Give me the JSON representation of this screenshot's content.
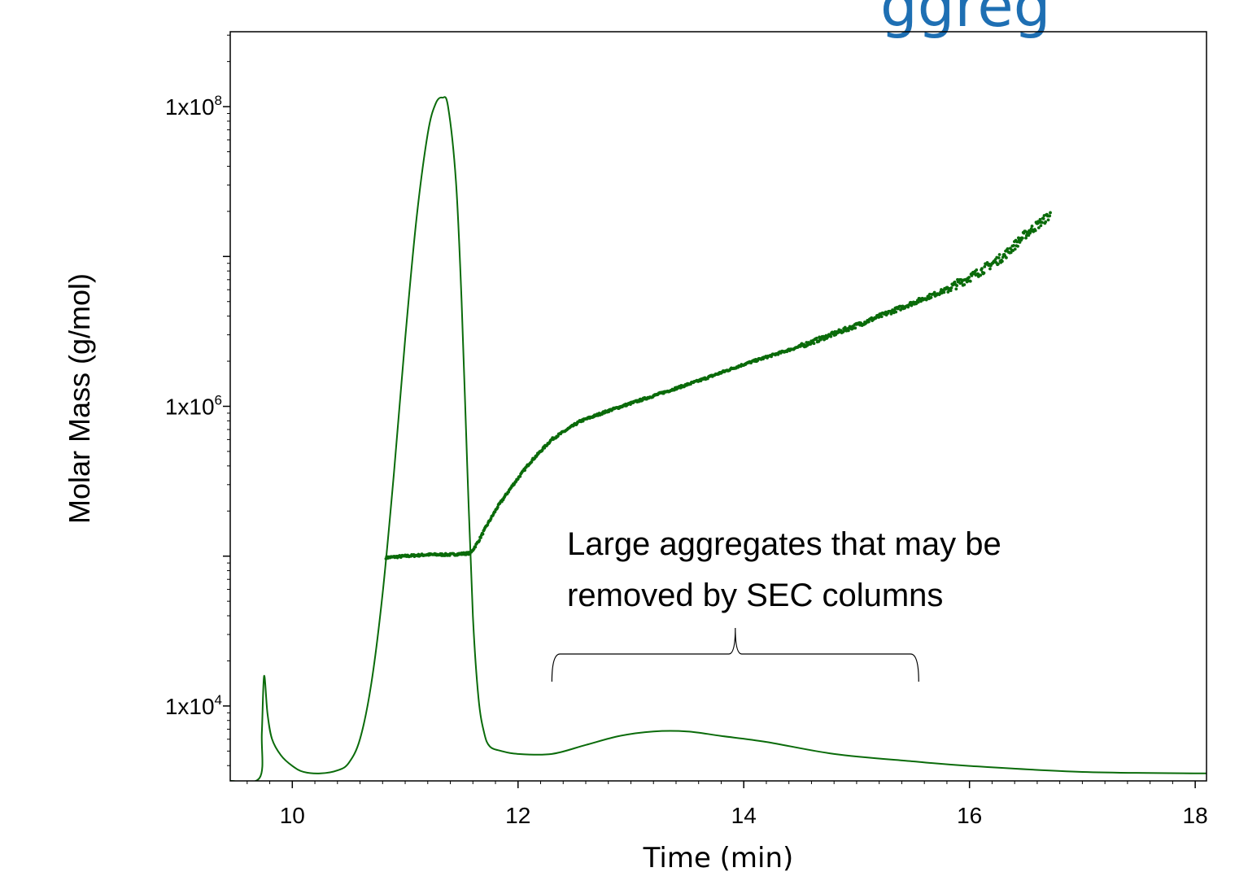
{
  "title_fragment": "ggreg",
  "colors": {
    "series": "#0a6b0a",
    "title": "#1e6fb3",
    "frame": "#000000"
  },
  "chart_data": {
    "type": "line",
    "title": "",
    "xlabel": "Time (min)",
    "ylabel": "Molar Mass (g/mol)",
    "xlim": [
      9.45,
      18.1
    ],
    "ylim_log10": [
      3.5,
      8.5
    ],
    "yscale": "log",
    "x_ticks": [
      10,
      12,
      14,
      16,
      18
    ],
    "x_tick_labels": [
      "10",
      "12",
      "14",
      "16",
      "18"
    ],
    "y_ticks": [
      {
        "base": "1x10",
        "exp": "8",
        "value_log10": 8
      },
      {
        "base": "1x10",
        "exp": "6",
        "value_log10": 6
      },
      {
        "base": "1x10",
        "exp": "4",
        "value_log10": 4
      }
    ],
    "grid": false,
    "annotation": {
      "lines": [
        "Large aggregates that may be",
        "removed by SEC columns"
      ],
      "bracket_x": [
        12.3,
        15.55
      ]
    },
    "series": [
      {
        "kind": "detector-trace",
        "x": [
          9.45,
          9.71,
          9.73,
          9.75,
          9.78,
          9.82,
          9.9,
          10.0,
          10.1,
          10.25,
          10.4,
          10.5,
          10.6,
          10.7,
          10.8,
          10.9,
          11.0,
          11.1,
          11.2,
          11.27,
          11.33,
          11.38,
          11.45,
          11.5,
          11.55,
          11.6,
          11.65,
          11.7,
          11.75,
          11.85,
          12.0,
          12.3,
          12.6,
          12.9,
          13.2,
          13.5,
          13.8,
          14.2,
          14.8,
          15.5,
          16.0,
          17.0,
          18.1
        ],
        "y_log10": [
          3.5,
          3.52,
          3.82,
          4.2,
          3.95,
          3.78,
          3.67,
          3.6,
          3.56,
          3.55,
          3.57,
          3.62,
          3.78,
          4.15,
          4.75,
          5.55,
          6.45,
          7.25,
          7.82,
          8.02,
          8.06,
          8.0,
          7.5,
          6.7,
          5.6,
          4.6,
          4.05,
          3.82,
          3.73,
          3.7,
          3.68,
          3.68,
          3.74,
          3.8,
          3.83,
          3.83,
          3.8,
          3.76,
          3.68,
          3.63,
          3.6,
          3.56,
          3.55
        ]
      },
      {
        "kind": "molar-mass",
        "x": [
          10.83,
          11.0,
          11.2,
          11.4,
          11.58,
          11.65,
          11.72,
          11.82,
          11.95,
          12.1,
          12.3,
          12.55,
          12.8,
          13.2,
          13.6,
          14.0,
          14.5,
          15.0,
          15.4,
          15.8,
          16.05,
          16.3,
          16.5,
          16.72
        ],
        "y_log10": [
          4.99,
          5.0,
          5.01,
          5.01,
          5.02,
          5.1,
          5.2,
          5.33,
          5.47,
          5.62,
          5.78,
          5.9,
          5.97,
          6.07,
          6.17,
          6.28,
          6.4,
          6.54,
          6.66,
          6.78,
          6.88,
          7.0,
          7.15,
          7.28
        ],
        "y_noise_log10": 0.015
      }
    ]
  }
}
